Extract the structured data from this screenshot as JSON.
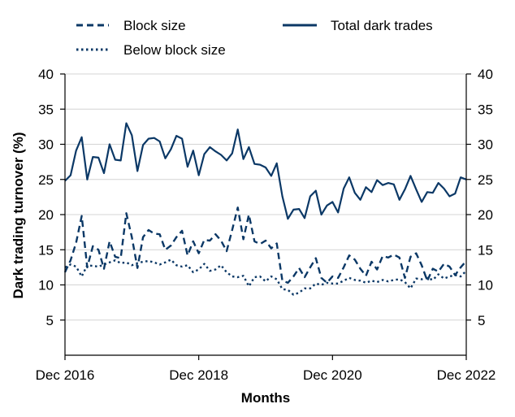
{
  "chart_data": {
    "type": "line",
    "xlabel": "Months",
    "ylabel": "Dark trading turnover (%)",
    "ylim": [
      0,
      40
    ],
    "y_ticks": [
      5,
      10,
      15,
      20,
      25,
      30,
      35,
      40
    ],
    "x_ticks": [
      "Dec 2016",
      "Dec 2018",
      "Dec 2020",
      "Dec 2022"
    ],
    "x_range_months": [
      "Dec 2016",
      "Dec 2022"
    ],
    "secondary_y_axis_mirrors_left": true,
    "grid": "horizontal",
    "legend_position": "top",
    "line_color": "#0b3866",
    "series": [
      {
        "name": "Block size",
        "style": "dashed",
        "values": [
          11.8,
          13.5,
          16.0,
          19.8,
          12.5,
          15.5,
          15.0,
          12.3,
          16.2,
          14.0,
          13.8,
          20.2,
          16.8,
          12.4,
          16.8,
          17.8,
          17.3,
          17.2,
          15.0,
          15.6,
          16.8,
          17.7,
          14.2,
          16.2,
          14.5,
          16.4,
          16.3,
          17.2,
          16.3,
          14.8,
          17.8,
          21.0,
          16.5,
          20.0,
          16.2,
          15.8,
          16.3,
          15.2,
          15.9,
          10.6,
          10.3,
          11.2,
          12.4,
          11.1,
          12.5,
          13.8,
          11.0,
          10.3,
          11.2,
          11.0,
          12.5,
          14.2,
          13.6,
          12.3,
          11.3,
          13.3,
          12.2,
          14.1,
          13.9,
          14.3,
          13.9,
          11.0,
          14.0,
          14.5,
          12.8,
          10.6,
          12.3,
          11.9,
          13.0,
          12.6,
          11.4,
          12.5,
          13.4
        ]
      },
      {
        "name": "Below block size",
        "style": "dotted",
        "values": [
          12.5,
          12.9,
          12.6,
          11.2,
          12.8,
          12.7,
          12.6,
          12.9,
          13.2,
          13.5,
          13.1,
          13.2,
          12.8,
          13.1,
          13.3,
          13.4,
          13.2,
          12.9,
          13.2,
          13.6,
          12.8,
          12.6,
          12.8,
          11.8,
          12.2,
          13.0,
          12.0,
          12.2,
          12.8,
          11.8,
          11.2,
          11.1,
          11.3,
          9.8,
          11.1,
          11.2,
          10.5,
          11.2,
          10.8,
          9.4,
          9.3,
          8.6,
          8.9,
          9.5,
          9.5,
          10.2,
          10.0,
          10.3,
          10.2,
          10.2,
          10.6,
          11.0,
          10.7,
          10.6,
          10.3,
          10.6,
          10.4,
          10.7,
          10.5,
          10.7,
          10.8,
          10.4,
          9.5,
          10.9,
          10.8,
          11.0,
          10.7,
          11.5,
          10.9,
          11.2,
          11.4,
          11.2,
          12.0
        ]
      },
      {
        "name": "Total dark trades",
        "style": "solid",
        "values": [
          24.8,
          25.6,
          29.1,
          31.0,
          25.0,
          28.2,
          28.1,
          25.9,
          30.0,
          27.8,
          27.7,
          33.0,
          31.3,
          26.2,
          29.9,
          30.8,
          30.9,
          30.4,
          28.0,
          29.3,
          31.2,
          30.8,
          26.8,
          29.1,
          25.6,
          28.6,
          29.6,
          29.0,
          28.5,
          27.7,
          28.7,
          32.1,
          27.9,
          29.6,
          27.2,
          27.1,
          26.7,
          25.5,
          27.3,
          22.6,
          19.4,
          20.7,
          20.8,
          19.5,
          22.6,
          23.4,
          20.0,
          21.3,
          21.8,
          20.3,
          23.7,
          25.3,
          23.1,
          22.1,
          23.9,
          23.2,
          24.9,
          24.2,
          24.5,
          24.3,
          22.1,
          23.6,
          25.5,
          23.6,
          21.8,
          23.2,
          23.1,
          24.5,
          23.7,
          22.6,
          23.0,
          25.3,
          25.0
        ]
      }
    ]
  }
}
